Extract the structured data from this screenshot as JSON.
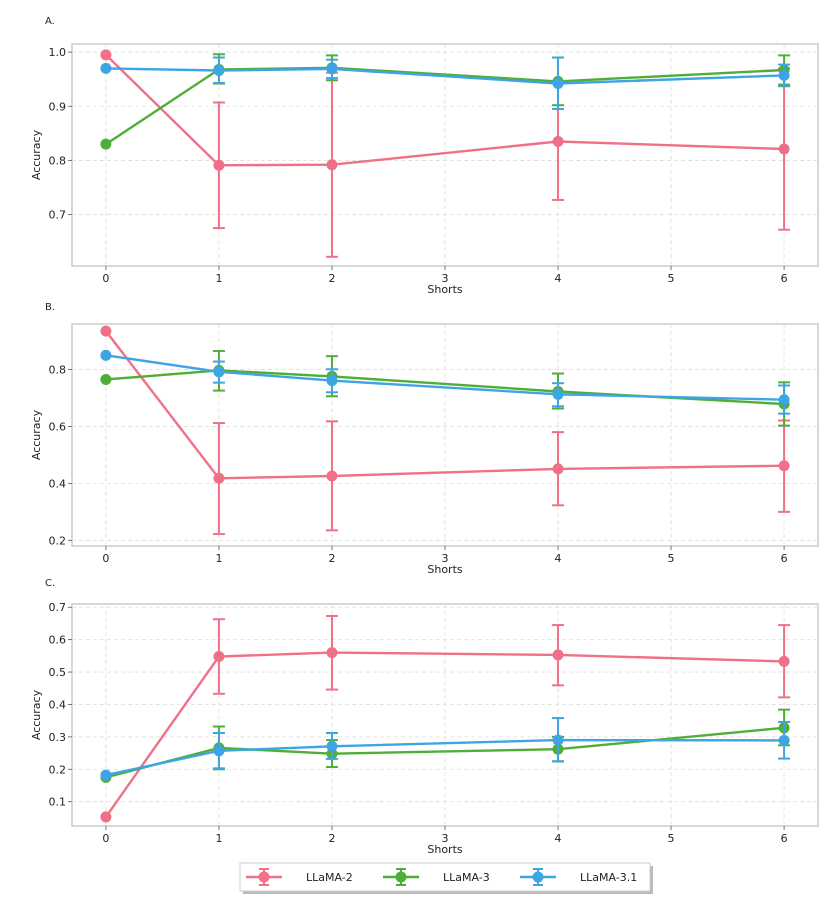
{
  "colors": {
    "LLaMA-2": "#f07088",
    "LLaMA-3": "#4fae36",
    "LLaMA-3.1": "#3ea5e4"
  },
  "legend": [
    "LLaMA-2",
    "LLaMA-3",
    "LLaMA-3.1"
  ],
  "chart_data": [
    {
      "type": "line",
      "panel_label": "A.",
      "xlabel": "Shorts",
      "ylabel": "Accuracy",
      "xlim": [
        -0.3,
        6.3
      ],
      "ylim": [
        0.605,
        1.015
      ],
      "xticks": [
        0,
        1,
        2,
        3,
        4,
        5,
        6
      ],
      "yticks": [
        0.7,
        0.8,
        0.9,
        1.0
      ],
      "ytick_labels": [
        "0.7",
        "0.8",
        "0.9",
        "1.0"
      ],
      "grid": true,
      "x": [
        0,
        1,
        2,
        4,
        6
      ],
      "series": [
        {
          "name": "LLaMA-2",
          "values": [
            0.995,
            0.791,
            0.792,
            0.835,
            0.821
          ],
          "err_low": [
            0.995,
            0.675,
            0.622,
            0.727,
            0.672
          ],
          "err_high": [
            0.995,
            0.907,
            0.962,
            0.943,
            0.97
          ]
        },
        {
          "name": "LLaMA-3",
          "values": [
            0.83,
            0.968,
            0.971,
            0.946,
            0.967
          ],
          "err_low": [
            0.83,
            0.942,
            0.948,
            0.902,
            0.94
          ],
          "err_high": [
            0.83,
            0.996,
            0.994,
            0.99,
            0.994
          ]
        },
        {
          "name": "LLaMA-3.1",
          "values": [
            0.97,
            0.966,
            0.969,
            0.942,
            0.957
          ],
          "err_low": [
            0.97,
            0.943,
            0.952,
            0.895,
            0.937
          ],
          "err_high": [
            0.97,
            0.99,
            0.986,
            0.99,
            0.977
          ]
        }
      ]
    },
    {
      "type": "line",
      "panel_label": "B.",
      "xlabel": "Shorts",
      "ylabel": "Accuracy",
      "xlim": [
        -0.3,
        6.3
      ],
      "ylim": [
        0.18,
        0.96
      ],
      "xticks": [
        0,
        1,
        2,
        3,
        4,
        5,
        6
      ],
      "yticks": [
        0.2,
        0.4,
        0.6,
        0.8
      ],
      "ytick_labels": [
        "0.2",
        "0.4",
        "0.6",
        "0.8"
      ],
      "grid": true,
      "x": [
        0,
        1,
        2,
        4,
        6
      ],
      "series": [
        {
          "name": "LLaMA-2",
          "values": [
            0.935,
            0.418,
            0.426,
            0.451,
            0.462
          ],
          "err_low": [
            0.935,
            0.222,
            0.235,
            0.323,
            0.3
          ],
          "err_high": [
            0.935,
            0.612,
            0.618,
            0.58,
            0.621
          ]
        },
        {
          "name": "LLaMA-3",
          "values": [
            0.765,
            0.797,
            0.776,
            0.723,
            0.679
          ],
          "err_low": [
            0.765,
            0.726,
            0.706,
            0.663,
            0.603
          ],
          "err_high": [
            0.765,
            0.865,
            0.847,
            0.786,
            0.755
          ]
        },
        {
          "name": "LLaMA-3.1",
          "values": [
            0.85,
            0.792,
            0.761,
            0.713,
            0.694
          ],
          "err_low": [
            0.85,
            0.754,
            0.72,
            0.671,
            0.645
          ],
          "err_high": [
            0.85,
            0.828,
            0.801,
            0.752,
            0.744
          ]
        }
      ]
    },
    {
      "type": "line",
      "panel_label": "C.",
      "xlabel": "Shorts",
      "ylabel": "Accuracy",
      "xlim": [
        -0.3,
        6.3
      ],
      "ylim": [
        0.025,
        0.71
      ],
      "xticks": [
        0,
        1,
        2,
        3,
        4,
        5,
        6
      ],
      "yticks": [
        0.1,
        0.2,
        0.3,
        0.4,
        0.5,
        0.6,
        0.7
      ],
      "ytick_labels": [
        "0.1",
        "0.2",
        "0.3",
        "0.4",
        "0.5",
        "0.6",
        "0.7"
      ],
      "grid": true,
      "x": [
        0,
        1,
        2,
        4,
        6
      ],
      "series": [
        {
          "name": "LLaMA-2",
          "values": [
            0.053,
            0.548,
            0.56,
            0.553,
            0.533
          ],
          "err_low": [
            0.053,
            0.433,
            0.446,
            0.459,
            0.422
          ],
          "err_high": [
            0.053,
            0.663,
            0.673,
            0.645,
            0.645
          ]
        },
        {
          "name": "LLaMA-3",
          "values": [
            0.175,
            0.266,
            0.248,
            0.262,
            0.328
          ],
          "err_low": [
            0.175,
            0.2,
            0.207,
            0.224,
            0.274
          ],
          "err_high": [
            0.175,
            0.332,
            0.29,
            0.3,
            0.384
          ]
        },
        {
          "name": "LLaMA-3.1",
          "values": [
            0.182,
            0.257,
            0.271,
            0.29,
            0.289
          ],
          "err_low": [
            0.182,
            0.203,
            0.232,
            0.225,
            0.233
          ],
          "err_high": [
            0.182,
            0.312,
            0.312,
            0.358,
            0.346
          ]
        }
      ]
    }
  ]
}
